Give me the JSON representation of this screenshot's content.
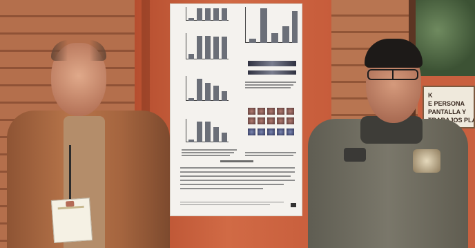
{
  "photo": {
    "description_role": "two men standing beside a scientific poster",
    "sign_lines": [
      "K",
      "E PERSONA",
      "PANTALLA Y",
      "TRABAJOS PLA"
    ]
  },
  "colors": {
    "board": "#c9603f",
    "wood_light": "#b46f4c",
    "wood_dark": "#8f5236",
    "poster_paper": "#f4f2ee",
    "left_jacket": "#a8673f",
    "right_sweater": "#6f6c5e"
  }
}
